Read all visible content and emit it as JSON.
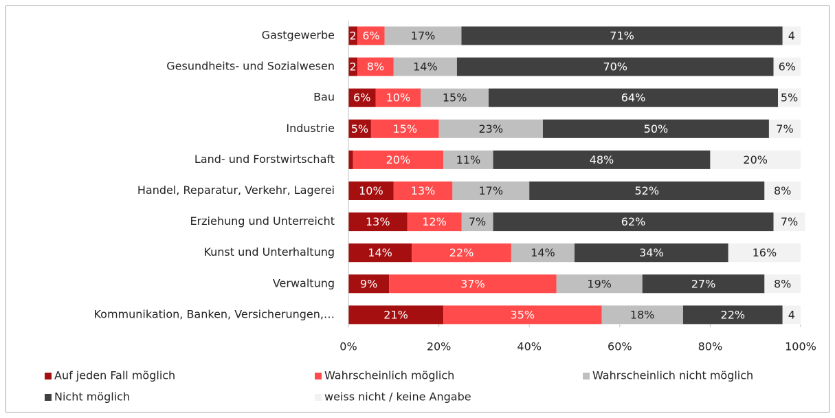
{
  "chart_data": {
    "type": "stacked-barh",
    "categories": [
      "Gastgewerbe",
      "Gesundheits- und Sozialwesen",
      "Bau",
      "Industrie",
      "Land- und Forstwirtschaft",
      "Handel, Reparatur, Verkehr, Lagerei",
      "Erziehung und Unterreicht",
      "Kunst und Unterhaltung",
      "Verwaltung",
      "Kommunikation, Banken, Versicherungen,…"
    ],
    "series": [
      {
        "name": "Auf jeden Fall möglich",
        "color": "#a50f0f",
        "values": [
          2,
          2,
          6,
          5,
          1,
          10,
          13,
          14,
          9,
          21
        ],
        "value_labels": [
          "2",
          "2",
          "6%",
          "5%",
          null,
          "10%",
          "13%",
          "14%",
          "9%",
          "21%"
        ]
      },
      {
        "name": "Wahrscheinlich möglich",
        "color": "#ff4b4b",
        "values": [
          6,
          8,
          10,
          15,
          20,
          13,
          12,
          22,
          37,
          35
        ],
        "value_labels": [
          "6%",
          "8%",
          "10%",
          "15%",
          "20%",
          "13%",
          "12%",
          "22%",
          "37%",
          "35%"
        ]
      },
      {
        "name": "Wahrscheinlich nicht möglich",
        "color": "#bfbfbf",
        "values": [
          17,
          14,
          15,
          23,
          11,
          17,
          7,
          14,
          19,
          18
        ],
        "value_labels": [
          "17%",
          "14%",
          "15%",
          "23%",
          "11%",
          "17%",
          "7%",
          "14%",
          "19%",
          "18%"
        ]
      },
      {
        "name": "Nicht möglich",
        "color": "#404040",
        "values": [
          71,
          70,
          64,
          50,
          48,
          52,
          62,
          34,
          27,
          22
        ],
        "value_labels": [
          "71%",
          "70%",
          "64%",
          "50%",
          "48%",
          "52%",
          "62%",
          "34%",
          "27%",
          "22%"
        ]
      },
      {
        "name": "weiss nicht / keine Angabe",
        "color": "#f2f2f2",
        "values": [
          4,
          6,
          5,
          7,
          20,
          8,
          7,
          16,
          8,
          4
        ],
        "value_labels": [
          "4",
          "6%",
          "5%",
          "7%",
          "20%",
          "8%",
          "7%",
          "16%",
          "8%",
          "4"
        ]
      }
    ],
    "xlim": [
      0,
      100
    ],
    "xticks": [
      {
        "value": 0,
        "label": "0%"
      },
      {
        "value": 20,
        "label": "20%"
      },
      {
        "value": 40,
        "label": "40%"
      },
      {
        "value": 60,
        "label": "60%"
      },
      {
        "value": 80,
        "label": "80%"
      },
      {
        "value": 100,
        "label": "100%"
      }
    ],
    "grid": false,
    "legend": "bottom"
  }
}
